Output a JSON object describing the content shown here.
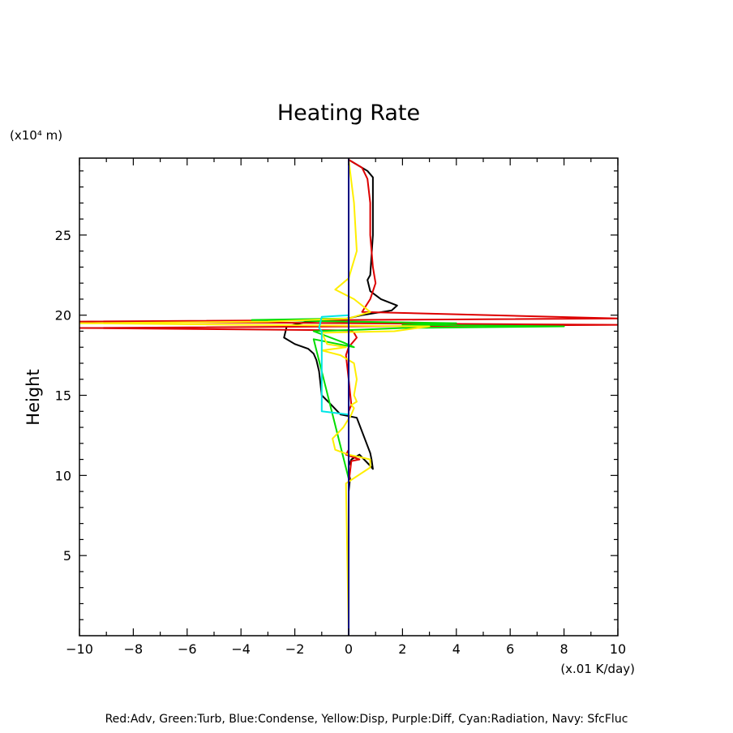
{
  "chart_data": {
    "type": "line",
    "title": "Heating Rate",
    "xlabel": "(x.01 K/day)",
    "ylabel": "Height",
    "y_unit_label": "(x10⁴ m)",
    "legend_text": "Red:Adv, Green:Turb, Blue:Condense, Yellow:Disp, Purple:Diff, Cyan:Radiation, Navy: SfcFluc",
    "xlim": [
      -10,
      10
    ],
    "ylim": [
      0,
      29.8
    ],
    "x_ticks": [
      -10,
      -8,
      -6,
      -4,
      -2,
      0,
      2,
      4,
      6,
      8,
      10
    ],
    "y_ticks": [
      5,
      10,
      15,
      20,
      25
    ],
    "grid": false,
    "series": [
      {
        "color": "#000000",
        "x": [
          0,
          0.0,
          0.05,
          0.0,
          0.0,
          0.1,
          0.4,
          0.8,
          0.9,
          0.85,
          0.8,
          0.3,
          -0.3,
          -0.7,
          -1.0,
          -1.1,
          -1.2,
          -1.3,
          -1.5,
          -2.0,
          -2.4,
          -2.3,
          -1.5,
          -0.3,
          0.5,
          1.6,
          1.8,
          1.2,
          0.8,
          0.7,
          0.8,
          0.9,
          0.9,
          0.9,
          0.9,
          0.7,
          0.0
        ],
        "y": [
          6.5,
          9.0,
          9.8,
          10.2,
          10.6,
          11.0,
          11.3,
          10.6,
          10.4,
          11.0,
          11.4,
          13.6,
          13.8,
          14.5,
          15.0,
          16.5,
          17.2,
          17.6,
          17.9,
          18.2,
          18.6,
          19.3,
          19.6,
          19.7,
          20.0,
          20.3,
          20.6,
          21.0,
          21.5,
          22.2,
          22.5,
          25.0,
          26.0,
          28.0,
          28.6,
          29.0,
          29.7
        ]
      },
      {
        "color": "#dd0000",
        "x": [
          0,
          0.0,
          0.1,
          0.4,
          -0.1,
          0.0,
          0.0,
          0.1,
          0.0,
          -0.1,
          0.0,
          0.3,
          0.2,
          0.1,
          -10.0,
          10.0,
          -10.0,
          10.0,
          0.5,
          0.8,
          1.0,
          0.9,
          0.8,
          0.8,
          0.7,
          0.5,
          0.0
        ],
        "y": [
          8.0,
          9.5,
          10.9,
          11.0,
          11.3,
          11.6,
          14.0,
          14.4,
          16.0,
          17.5,
          18.0,
          18.6,
          18.9,
          19.05,
          19.2,
          19.4,
          19.6,
          19.8,
          20.2,
          21.0,
          22.0,
          23.0,
          25.0,
          27.0,
          28.5,
          29.2,
          29.7
        ]
      },
      {
        "color": "#00dd00",
        "x": [
          0,
          0.0,
          -1.3,
          0.2,
          -0.2,
          -1.3,
          0.5,
          2.0,
          8.0,
          2.0,
          4.0,
          0.0,
          -3.6,
          0.0,
          0.0
        ],
        "y": [
          0.2,
          9.8,
          18.5,
          18.0,
          18.3,
          19.0,
          19.1,
          19.2,
          19.3,
          19.4,
          19.5,
          19.6,
          19.7,
          19.8,
          29.7
        ]
      },
      {
        "color": "#ffee00",
        "x": [
          0,
          -0.1,
          0.8,
          0.8,
          0.0,
          -0.5,
          -0.6,
          -0.2,
          0.1,
          0.2,
          0.1,
          0.3,
          0.2,
          0.3,
          0.2,
          -0.3,
          -1.0,
          -0.1,
          -0.8,
          -1.0,
          1.7,
          3.0,
          -4.0,
          -10.0,
          -3.0,
          0.0,
          0.8,
          0.2,
          -0.5,
          0.0,
          0.3,
          0.2,
          0.0
        ],
        "y": [
          0.2,
          9.5,
          10.5,
          11.0,
          11.3,
          11.6,
          12.3,
          13.0,
          13.8,
          14.2,
          14.4,
          14.6,
          15.0,
          16.0,
          17.0,
          17.5,
          17.8,
          18.0,
          18.2,
          18.9,
          19.0,
          19.3,
          19.4,
          19.5,
          19.6,
          19.8,
          20.2,
          21.0,
          21.6,
          22.3,
          24.0,
          27.0,
          29.7
        ]
      },
      {
        "color": "#00e5e5",
        "x": [
          0,
          0.0,
          -1.0,
          -1.0,
          -1.1,
          -1.0,
          0.0,
          0.0
        ],
        "y": [
          0.2,
          13.8,
          14.0,
          19.0,
          19.2,
          19.9,
          20.0,
          29.7
        ]
      },
      {
        "color": "#000080",
        "x": [
          0.0,
          0.0
        ],
        "y": [
          0.0,
          29.8
        ]
      }
    ]
  }
}
